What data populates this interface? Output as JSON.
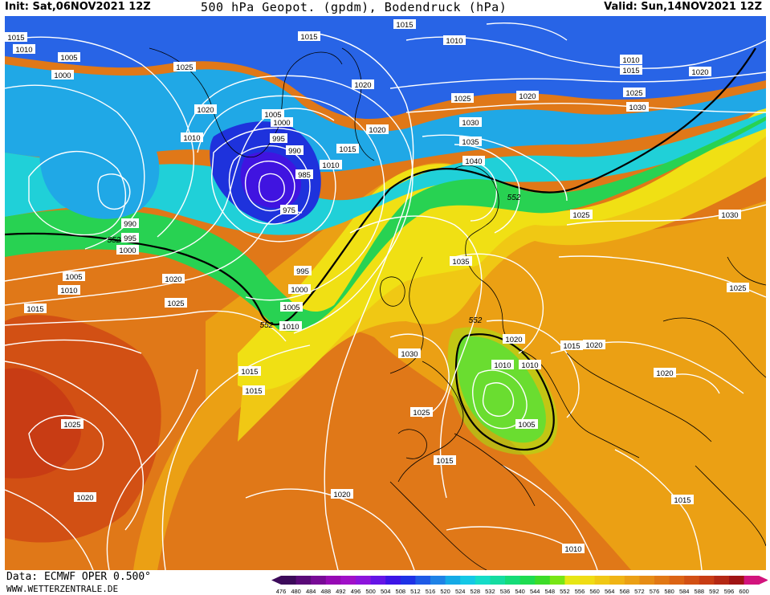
{
  "header": {
    "init": "Init: Sat,06NOV2021 12Z",
    "title": "500 hPa Geopot. (gpdm), Bodendruck (hPa)",
    "valid": "Valid: Sun,14NOV2021 12Z"
  },
  "footer": {
    "data_source": "Data: ECMWF OPER 0.500°",
    "website": "WWW.WETTERZENTRALE.DE"
  },
  "legend": {
    "values": [
      "476",
      "480",
      "484",
      "488",
      "492",
      "496",
      "500",
      "504",
      "508",
      "512",
      "516",
      "520",
      "524",
      "528",
      "532",
      "536",
      "540",
      "544",
      "548",
      "552",
      "556",
      "560",
      "564",
      "568",
      "572",
      "576",
      "580",
      "584",
      "588",
      "592",
      "596",
      "600"
    ],
    "colors": [
      "#3c0a5a",
      "#5a0a78",
      "#780a96",
      "#960ab4",
      "#a010c8",
      "#8c14dc",
      "#6414e6",
      "#3c14e6",
      "#1e32e6",
      "#1e5ae6",
      "#1e82e6",
      "#14aae6",
      "#14c8e6",
      "#14dcc8",
      "#14dca0",
      "#14dc78",
      "#1edc50",
      "#3cdc28",
      "#78e614",
      "#e6e614",
      "#f0dc14",
      "#f0c814",
      "#f0b414",
      "#eba014",
      "#e68c14",
      "#e17814",
      "#dc6414",
      "#d25014",
      "#c83c14",
      "#b42814",
      "#a01414",
      "#d2147d"
    ]
  },
  "map": {
    "colors": {
      "bg_orange": "#e07818",
      "lavender": "#8070e6",
      "blue": "#2864e6",
      "deep_blue": "#1e32dc",
      "purple_low": "#4014e0",
      "light_blue": "#20a8e6",
      "cyan": "#20d0d8",
      "green": "#28d252",
      "yellow_green": "#a0e614",
      "yellow": "#f0e014",
      "gold": "#f0c814",
      "amber": "#eba014",
      "dark_orange": "#d25014",
      "red_orange": "#c83c14",
      "isobar": "#ffffff",
      "coast": "#000000",
      "contour_552": "#000000"
    },
    "pressure_labels": [
      {
        "id": "p1",
        "text": "1015"
      },
      {
        "id": "p2",
        "text": "1010"
      },
      {
        "id": "p3",
        "text": "1005"
      },
      {
        "id": "p4",
        "text": "1000"
      },
      {
        "id": "p5",
        "text": "1025"
      },
      {
        "id": "p6",
        "text": "1015"
      },
      {
        "id": "p7",
        "text": "1015"
      },
      {
        "id": "p8",
        "text": "1010"
      },
      {
        "id": "p9",
        "text": "1020"
      },
      {
        "id": "p10",
        "text": "1010"
      },
      {
        "id": "p11",
        "text": "1020"
      },
      {
        "id": "p12",
        "text": "1005"
      },
      {
        "id": "p13",
        "text": "1000"
      },
      {
        "id": "p14",
        "text": "995"
      },
      {
        "id": "p15",
        "text": "990"
      },
      {
        "id": "p16",
        "text": "985"
      },
      {
        "id": "p17",
        "text": "975"
      },
      {
        "id": "p18",
        "text": "1015"
      },
      {
        "id": "p19",
        "text": "1010"
      },
      {
        "id": "p20",
        "text": "1020"
      },
      {
        "id": "p21",
        "text": "1020"
      },
      {
        "id": "p22",
        "text": "1025"
      },
      {
        "id": "p23",
        "text": "1020"
      },
      {
        "id": "p24",
        "text": "1030"
      },
      {
        "id": "p25",
        "text": "1035"
      },
      {
        "id": "p26",
        "text": "1040"
      },
      {
        "id": "p27",
        "text": "1010"
      },
      {
        "id": "p28",
        "text": "1010"
      },
      {
        "id": "p29",
        "text": "1015"
      },
      {
        "id": "p30",
        "text": "1020"
      },
      {
        "id": "p31",
        "text": "1025"
      },
      {
        "id": "p32",
        "text": "1030"
      },
      {
        "id": "p33",
        "text": "990"
      },
      {
        "id": "p34",
        "text": "995"
      },
      {
        "id": "p35",
        "text": "1000"
      },
      {
        "id": "p36",
        "text": "1005"
      },
      {
        "id": "p37",
        "text": "1010"
      },
      {
        "id": "p38",
        "text": "1015"
      },
      {
        "id": "p39",
        "text": "1020"
      },
      {
        "id": "p40",
        "text": "1025"
      },
      {
        "id": "p41",
        "text": "995"
      },
      {
        "id": "p42",
        "text": "1000"
      },
      {
        "id": "p43",
        "text": "1005"
      },
      {
        "id": "p44",
        "text": "1010"
      },
      {
        "id": "p45",
        "text": "1015"
      },
      {
        "id": "p46",
        "text": "1015"
      },
      {
        "id": "p47",
        "text": "1025"
      },
      {
        "id": "p48",
        "text": "1020"
      },
      {
        "id": "p49",
        "text": "1030"
      },
      {
        "id": "p50",
        "text": "1035"
      },
      {
        "id": "p51",
        "text": "1025"
      },
      {
        "id": "p52",
        "text": "1030"
      },
      {
        "id": "p53",
        "text": "1025"
      },
      {
        "id": "p54",
        "text": "1020"
      },
      {
        "id": "p55",
        "text": "1015"
      },
      {
        "id": "p56",
        "text": "1020"
      },
      {
        "id": "p57",
        "text": "1020"
      },
      {
        "id": "p58",
        "text": "1010"
      },
      {
        "id": "p59",
        "text": "1005"
      },
      {
        "id": "p60",
        "text": "1025"
      },
      {
        "id": "p61",
        "text": "1015"
      },
      {
        "id": "p62",
        "text": "1020"
      },
      {
        "id": "p63",
        "text": "1015"
      },
      {
        "id": "p64",
        "text": "1010"
      }
    ],
    "geopotential_labels": [
      {
        "id": "g1",
        "text": "552"
      },
      {
        "id": "g2",
        "text": "552"
      },
      {
        "id": "g3",
        "text": "552"
      },
      {
        "id": "g4",
        "text": "552"
      }
    ]
  }
}
